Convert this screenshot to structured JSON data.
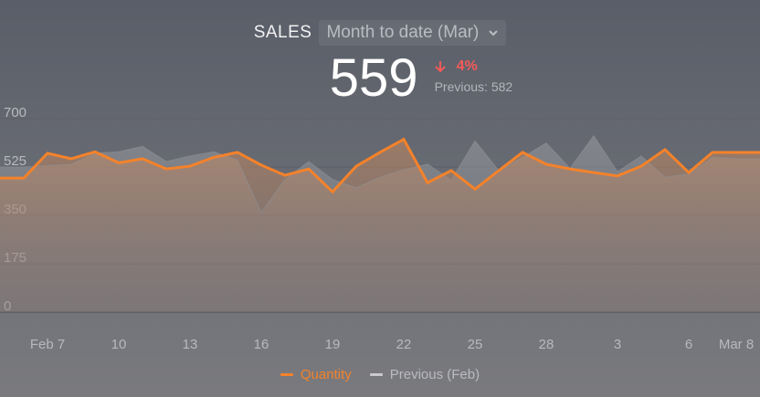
{
  "header": {
    "metric": "SALES",
    "period": "Month to date (Mar)",
    "value": "559",
    "delta": "4%",
    "previous": "Previous: 582"
  },
  "colors": {
    "current": "#f5822a",
    "previous": "#a4a6ab",
    "delta_down": "#f35a5a"
  },
  "chart_data": {
    "type": "area",
    "title": "",
    "xlabel": "",
    "ylabel": "",
    "ylim": [
      0,
      700
    ],
    "y_ticks": [
      0,
      175,
      350,
      525,
      700
    ],
    "x_tick_labels": [
      "Feb 7",
      "10",
      "13",
      "16",
      "19",
      "22",
      "25",
      "28",
      "3",
      "6",
      "Mar 8"
    ],
    "x_tick_positions": [
      2,
      5,
      8,
      11,
      14,
      17,
      20,
      23,
      26,
      29,
      31
    ],
    "grid": true,
    "legend": "bottom",
    "series": [
      {
        "name": "Quantity",
        "values": [
          485,
          485,
          575,
          555,
          580,
          540,
          555,
          518,
          528,
          560,
          578,
          532,
          495,
          518,
          435,
          528,
          578,
          625,
          468,
          512,
          445,
          512,
          578,
          535,
          518,
          505,
          493,
          528,
          588,
          505,
          578,
          578,
          578
        ]
      },
      {
        "name": "Previous (Feb)",
        "values": [
          525,
          525,
          530,
          535,
          575,
          580,
          600,
          545,
          565,
          580,
          550,
          360,
          480,
          545,
          480,
          450,
          488,
          515,
          535,
          478,
          620,
          512,
          560,
          612,
          520,
          638,
          508,
          565,
          488,
          500,
          560,
          555,
          555
        ]
      }
    ]
  }
}
